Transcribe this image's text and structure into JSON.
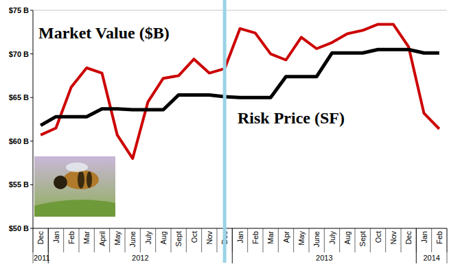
{
  "chart_data": {
    "type": "line",
    "categories": [
      "Dec",
      "Jan",
      "Feb",
      "Mar",
      "April",
      "May",
      "June",
      "July",
      "Aug",
      "Sept",
      "Oct",
      "Nov",
      "Dec",
      "Jan",
      "Feb",
      "Mar",
      "Apr",
      "May",
      "June",
      "July",
      "Aug",
      "Sept",
      "Oct",
      "Nov",
      "Dec",
      "Jan",
      "Feb"
    ],
    "x_groups": [
      {
        "label": "2011",
        "start": 0,
        "end": 0
      },
      {
        "label": "2012",
        "start": 1,
        "end": 12
      },
      {
        "label": "2013",
        "start": 13,
        "end": 24
      },
      {
        "label": "2014",
        "start": 25,
        "end": 26
      }
    ],
    "series": [
      {
        "name": "Market Value ($B)",
        "color": "#cc0000",
        "values": [
          60.7,
          61.5,
          66.2,
          68.4,
          67.8,
          60.7,
          58.0,
          64.5,
          67.2,
          67.5,
          69.4,
          67.8,
          68.3,
          72.9,
          72.4,
          70.0,
          69.3,
          71.9,
          70.6,
          71.3,
          72.3,
          72.7,
          73.4,
          73.4,
          70.8,
          63.2,
          61.4
        ]
      },
      {
        "name": "Risk Price (SF)",
        "color": "#000000",
        "values": [
          61.8,
          62.8,
          62.8,
          62.8,
          63.7,
          63.7,
          63.6,
          63.6,
          63.6,
          65.3,
          65.3,
          65.3,
          65.1,
          65.0,
          65.0,
          65.0,
          67.4,
          67.4,
          67.4,
          70.1,
          70.1,
          70.1,
          70.5,
          70.5,
          70.5,
          70.1,
          70.1
        ]
      }
    ],
    "ylim": [
      50,
      75
    ],
    "yticks": [
      {
        "value": 50,
        "label": "$50 B"
      },
      {
        "value": 55,
        "label": "$55 B"
      },
      {
        "value": 60,
        "label": "$60 B"
      },
      {
        "value": 65,
        "label": "$65 B"
      },
      {
        "value": 70,
        "label": "$70 B"
      },
      {
        "value": 75,
        "label": "$75 B"
      }
    ],
    "vertical_line": {
      "category": 12,
      "color": "#99d3e6"
    },
    "grid": false,
    "legend": "none"
  }
}
